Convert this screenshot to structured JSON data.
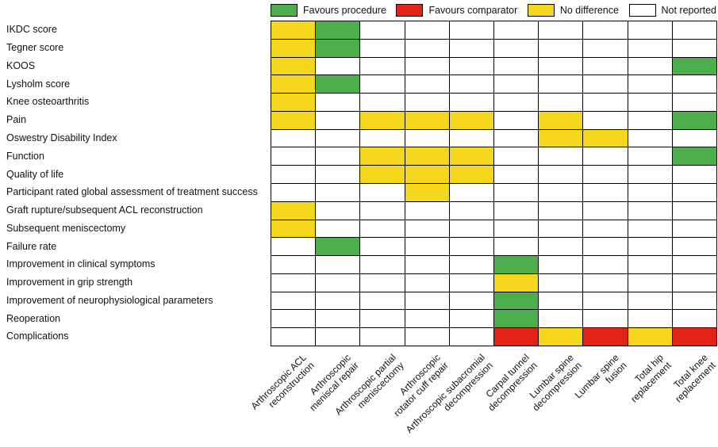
{
  "chart_data": {
    "type": "heatmap",
    "title": "",
    "legend_position": "top",
    "grid": true,
    "legend": [
      {
        "label": "Favours procedure",
        "code": "G",
        "color": "#4CAE4C"
      },
      {
        "label": "Favours comparator",
        "code": "R",
        "color": "#E2231A"
      },
      {
        "label": "No difference",
        "code": "Y",
        "color": "#F4D71C"
      },
      {
        "label": "Not reported",
        "code": "W",
        "color": "#FFFFFF"
      }
    ],
    "rows": [
      "IKDC score",
      "Tegner score",
      "KOOS",
      "Lysholm score",
      "Knee osteoarthritis",
      "Pain",
      "Oswestry Disability Index",
      "Function",
      "Quality of life",
      "Participant rated global assessment of treatment success",
      "Graft rupture/subsequent ACL reconstruction",
      "Subsequent meniscectomy",
      "Failure rate",
      "Improvement in clinical symptoms",
      "Improvement in grip strength",
      "Improvement of neurophysiological parameters",
      "Reoperation",
      "Complications"
    ],
    "columns": [
      [
        "Arthroscopic ACL",
        "reconstruction"
      ],
      [
        "Arthroscopic",
        "meniscal repair"
      ],
      [
        "Arthroscopic partial",
        "meniscectomy"
      ],
      [
        "Arthroscopic",
        "rotator cuff repair"
      ],
      [
        "Arthroscopic subacromial",
        "decompression"
      ],
      [
        "Carpal tunnel",
        "decompression"
      ],
      [
        "Lumbar spine",
        "decompression"
      ],
      [
        "Lumbar spine",
        "fusion"
      ],
      [
        "Total hip",
        "replacement"
      ],
      [
        "Total knee",
        "replacement"
      ]
    ],
    "values": [
      [
        "Y",
        "G",
        "W",
        "W",
        "W",
        "W",
        "W",
        "W",
        "W",
        "W"
      ],
      [
        "Y",
        "G",
        "W",
        "W",
        "W",
        "W",
        "W",
        "W",
        "W",
        "W"
      ],
      [
        "Y",
        "W",
        "W",
        "W",
        "W",
        "W",
        "W",
        "W",
        "W",
        "G"
      ],
      [
        "Y",
        "G",
        "W",
        "W",
        "W",
        "W",
        "W",
        "W",
        "W",
        "W"
      ],
      [
        "Y",
        "W",
        "W",
        "W",
        "W",
        "W",
        "W",
        "W",
        "W",
        "W"
      ],
      [
        "Y",
        "W",
        "Y",
        "Y",
        "Y",
        "W",
        "Y",
        "W",
        "W",
        "G"
      ],
      [
        "W",
        "W",
        "W",
        "W",
        "W",
        "W",
        "Y",
        "Y",
        "W",
        "W"
      ],
      [
        "W",
        "W",
        "Y",
        "Y",
        "Y",
        "W",
        "W",
        "W",
        "W",
        "G"
      ],
      [
        "W",
        "W",
        "Y",
        "Y",
        "Y",
        "W",
        "W",
        "W",
        "W",
        "W"
      ],
      [
        "W",
        "W",
        "W",
        "Y",
        "W",
        "W",
        "W",
        "W",
        "W",
        "W"
      ],
      [
        "Y",
        "W",
        "W",
        "W",
        "W",
        "W",
        "W",
        "W",
        "W",
        "W"
      ],
      [
        "Y",
        "W",
        "W",
        "W",
        "W",
        "W",
        "W",
        "W",
        "W",
        "W"
      ],
      [
        "W",
        "G",
        "W",
        "W",
        "W",
        "W",
        "W",
        "W",
        "W",
        "W"
      ],
      [
        "W",
        "W",
        "W",
        "W",
        "W",
        "G",
        "W",
        "W",
        "W",
        "W"
      ],
      [
        "W",
        "W",
        "W",
        "W",
        "W",
        "Y",
        "W",
        "W",
        "W",
        "W"
      ],
      [
        "W",
        "W",
        "W",
        "W",
        "W",
        "G",
        "W",
        "W",
        "W",
        "W"
      ],
      [
        "W",
        "W",
        "W",
        "W",
        "W",
        "G",
        "W",
        "W",
        "W",
        "W"
      ],
      [
        "W",
        "W",
        "W",
        "W",
        "W",
        "R",
        "Y",
        "R",
        "Y",
        "R"
      ]
    ]
  }
}
